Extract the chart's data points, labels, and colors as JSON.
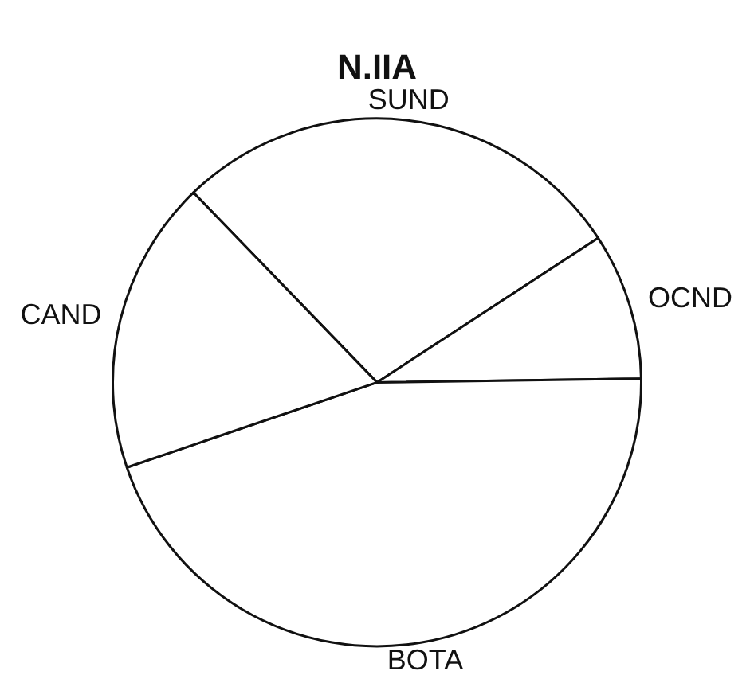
{
  "chart_data": {
    "type": "pie",
    "title": "N.IIA",
    "categories": [
      "SUND",
      "OCND",
      "BOTA",
      "CAND"
    ],
    "values": [
      28,
      9,
      45,
      18
    ],
    "colors": [
      "#ffffff",
      "#ffffff",
      "#ffffff",
      "#ffffff"
    ],
    "legend": false
  }
}
